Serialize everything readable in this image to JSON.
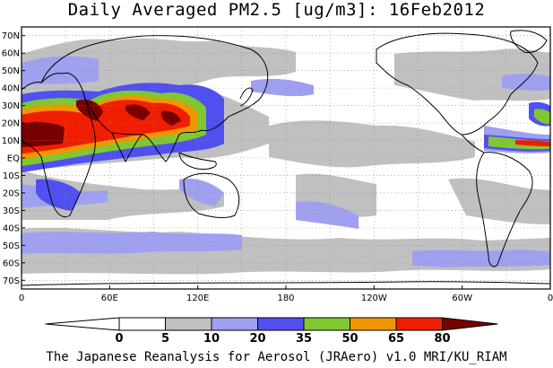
{
  "title": "Daily Averaged PM2.5 [ug/m3]: 16Feb2012",
  "footer": "The Japanese Reanalysis for Aerosol (JRAero) v1.0 MRI/KU_RIAM",
  "map": {
    "lat_labels": [
      "70N",
      "60N",
      "50N",
      "40N",
      "30N",
      "20N",
      "10N",
      "EQ",
      "10S",
      "20S",
      "30S",
      "40S",
      "50S",
      "60S",
      "70S"
    ],
    "lon_labels": [
      "0",
      "60E",
      "120E",
      "180",
      "120W",
      "60W",
      "0"
    ],
    "lat_range": [
      -75,
      75
    ],
    "lon_range": [
      0,
      360
    ],
    "grid": true,
    "colors": {
      "land_outline": "#000000",
      "grid": "#888888"
    }
  },
  "colorbar": {
    "ticks": [
      "0",
      "5",
      "10",
      "20",
      "35",
      "50",
      "65",
      "80"
    ],
    "bins": [
      {
        "range": "<0",
        "color": "#ffffff"
      },
      {
        "range": "0-5",
        "color": "#ffffff"
      },
      {
        "range": "5-10",
        "color": "#c0c0c0"
      },
      {
        "range": "10-20",
        "color": "#a0a0f0"
      },
      {
        "range": "20-35",
        "color": "#5050f0"
      },
      {
        "range": "35-50",
        "color": "#80c832"
      },
      {
        "range": "50-65",
        "color": "#f09600"
      },
      {
        "range": "65-80",
        "color": "#f01e00"
      },
      {
        "range": ">80",
        "color": "#780000"
      }
    ]
  }
}
